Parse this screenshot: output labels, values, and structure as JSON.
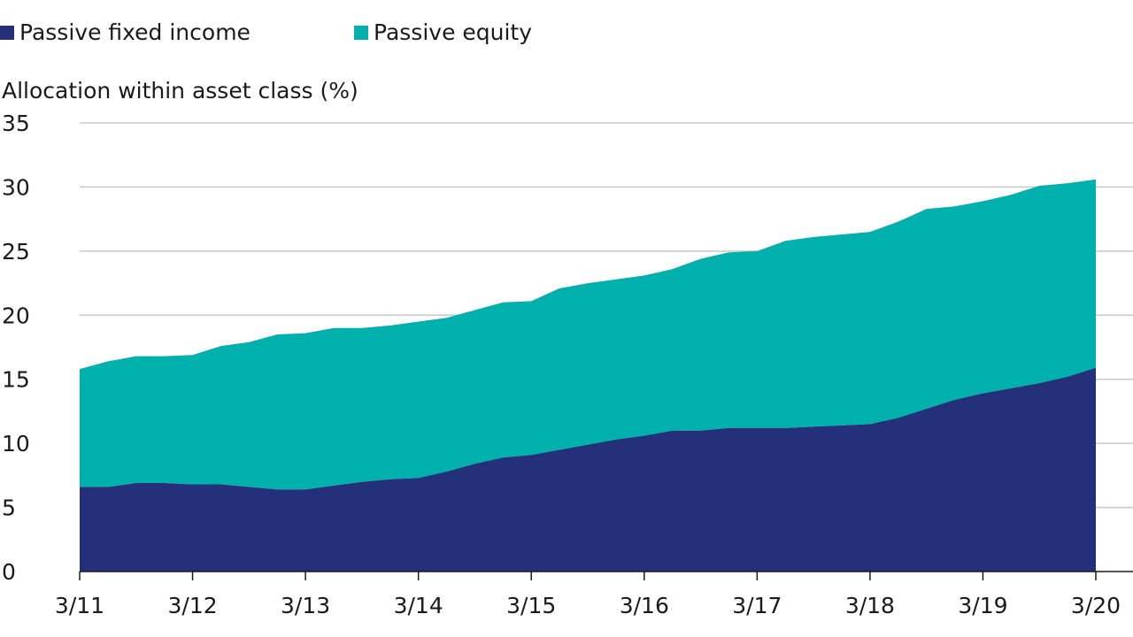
{
  "chart_data": {
    "type": "area",
    "stacked": true,
    "title": "",
    "ylabel": "Allocation within asset class (%)",
    "xlabel": "",
    "ylim": [
      0,
      35
    ],
    "yticks": [
      0,
      5,
      10,
      15,
      20,
      25,
      30,
      35
    ],
    "xticks": [
      "3/11",
      "3/12",
      "3/13",
      "3/14",
      "3/15",
      "3/16",
      "3/17",
      "3/18",
      "3/19",
      "3/20"
    ],
    "grid": "horizontal",
    "legend_position": "top-left",
    "series": [
      {
        "name": "Passive fixed income",
        "color": "#24307a",
        "points": [
          [
            "3/11",
            6.6
          ],
          [
            "6/11",
            6.6
          ],
          [
            "9/11",
            6.9
          ],
          [
            "12/11",
            6.9
          ],
          [
            "3/12",
            6.8
          ],
          [
            "6/12",
            6.8
          ],
          [
            "9/12",
            6.6
          ],
          [
            "12/12",
            6.4
          ],
          [
            "3/13",
            6.4
          ],
          [
            "6/13",
            6.7
          ],
          [
            "9/13",
            7.0
          ],
          [
            "12/13",
            7.2
          ],
          [
            "3/14",
            7.3
          ],
          [
            "6/14",
            7.8
          ],
          [
            "9/14",
            8.4
          ],
          [
            "12/14",
            8.9
          ],
          [
            "3/15",
            9.1
          ],
          [
            "6/15",
            9.5
          ],
          [
            "9/15",
            9.9
          ],
          [
            "12/15",
            10.3
          ],
          [
            "3/16",
            10.6
          ],
          [
            "6/16",
            11.0
          ],
          [
            "9/16",
            11.0
          ],
          [
            "12/16",
            11.2
          ],
          [
            "3/17",
            11.2
          ],
          [
            "6/17",
            11.2
          ],
          [
            "9/17",
            11.3
          ],
          [
            "12/17",
            11.4
          ],
          [
            "3/18",
            11.5
          ],
          [
            "6/18",
            12.0
          ],
          [
            "9/18",
            12.7
          ],
          [
            "12/18",
            13.4
          ],
          [
            "3/19",
            13.9
          ],
          [
            "6/19",
            14.3
          ],
          [
            "9/19",
            14.7
          ],
          [
            "12/19",
            15.2
          ],
          [
            "3/20",
            15.9
          ]
        ]
      },
      {
        "name": "Passive equity",
        "color": "#00b0ad",
        "points": [
          [
            "3/11",
            9.2
          ],
          [
            "6/11",
            9.8
          ],
          [
            "9/11",
            9.9
          ],
          [
            "12/11",
            9.9
          ],
          [
            "3/12",
            10.1
          ],
          [
            "6/12",
            10.8
          ],
          [
            "9/12",
            11.3
          ],
          [
            "12/12",
            12.1
          ],
          [
            "3/13",
            12.2
          ],
          [
            "6/13",
            12.3
          ],
          [
            "9/13",
            12.0
          ],
          [
            "12/13",
            12.0
          ],
          [
            "3/14",
            12.2
          ],
          [
            "6/14",
            12.0
          ],
          [
            "9/14",
            12.0
          ],
          [
            "12/14",
            12.1
          ],
          [
            "3/15",
            12.0
          ],
          [
            "6/15",
            12.6
          ],
          [
            "9/15",
            12.6
          ],
          [
            "12/15",
            12.5
          ],
          [
            "3/16",
            12.5
          ],
          [
            "6/16",
            12.6
          ],
          [
            "9/16",
            13.4
          ],
          [
            "12/16",
            13.7
          ],
          [
            "3/17",
            13.8
          ],
          [
            "6/17",
            14.6
          ],
          [
            "9/17",
            14.8
          ],
          [
            "12/17",
            14.9
          ],
          [
            "3/18",
            15.0
          ],
          [
            "6/18",
            15.3
          ],
          [
            "9/18",
            15.6
          ],
          [
            "12/18",
            15.1
          ],
          [
            "3/19",
            15.0
          ],
          [
            "6/19",
            15.1
          ],
          [
            "9/19",
            15.4
          ],
          [
            "12/19",
            15.1
          ],
          [
            "3/20",
            14.7
          ]
        ]
      }
    ]
  }
}
